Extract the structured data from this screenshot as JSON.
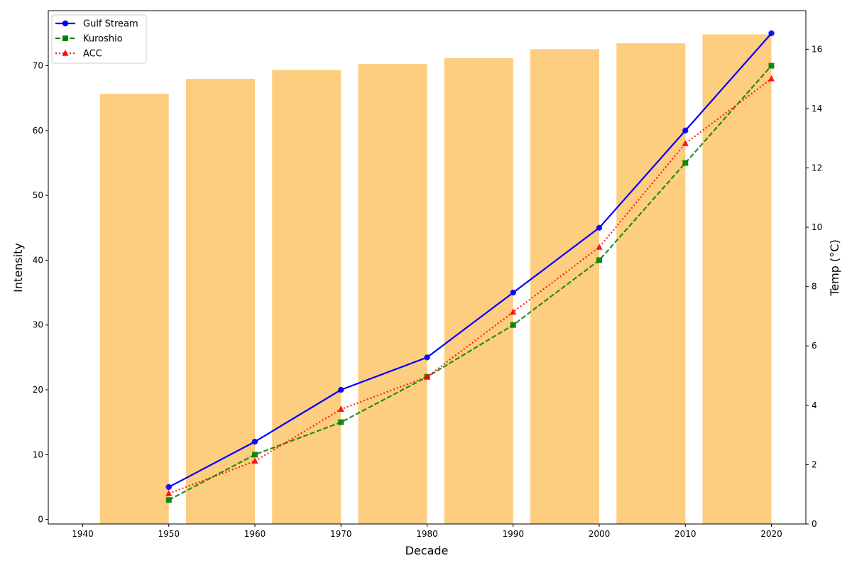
{
  "chart_data": {
    "type": "bar+line",
    "title": "",
    "xlabel": "Decade",
    "ylabel": "Intensity",
    "y2label": "Temp (°C)",
    "xlim": [
      1936,
      2024
    ],
    "ylim": [
      -0.7,
      78.5
    ],
    "y2lim": [
      0,
      17.3
    ],
    "xticks": [
      1940,
      1950,
      1960,
      1970,
      1980,
      1990,
      2000,
      2010,
      2020
    ],
    "yticks": [
      0,
      10,
      20,
      30,
      40,
      50,
      60,
      70
    ],
    "y2ticks": [
      0,
      2,
      4,
      6,
      8,
      10,
      12,
      14,
      16
    ],
    "grid": false,
    "legend_position": "top-left",
    "bars": {
      "axis": "right",
      "color": "#fdcd80",
      "x_left": [
        1942,
        1952,
        1962,
        1972,
        1982,
        1992,
        2002,
        2012
      ],
      "x_right": [
        1950,
        1960,
        1970,
        1980,
        1990,
        2000,
        2010,
        2020
      ],
      "values": [
        14.5,
        15.0,
        15.3,
        15.5,
        15.7,
        16.0,
        16.2,
        16.5
      ]
    },
    "x": [
      1950,
      1960,
      1970,
      1980,
      1990,
      2000,
      2010,
      2020
    ],
    "series": [
      {
        "name": "Gulf Stream",
        "values": [
          5,
          12,
          20,
          25,
          35,
          45,
          60,
          75
        ],
        "color": "#0000ff",
        "linestyle": "solid",
        "marker": "circle"
      },
      {
        "name": "Kuroshio",
        "values": [
          3,
          10,
          15,
          22,
          30,
          40,
          55,
          70
        ],
        "color": "#008000",
        "linestyle": "dashed",
        "marker": "square"
      },
      {
        "name": "ACC",
        "values": [
          4,
          9,
          17,
          22,
          32,
          42,
          58,
          68
        ],
        "color": "#ff0000",
        "linestyle": "dotted",
        "marker": "triangle"
      }
    ]
  }
}
